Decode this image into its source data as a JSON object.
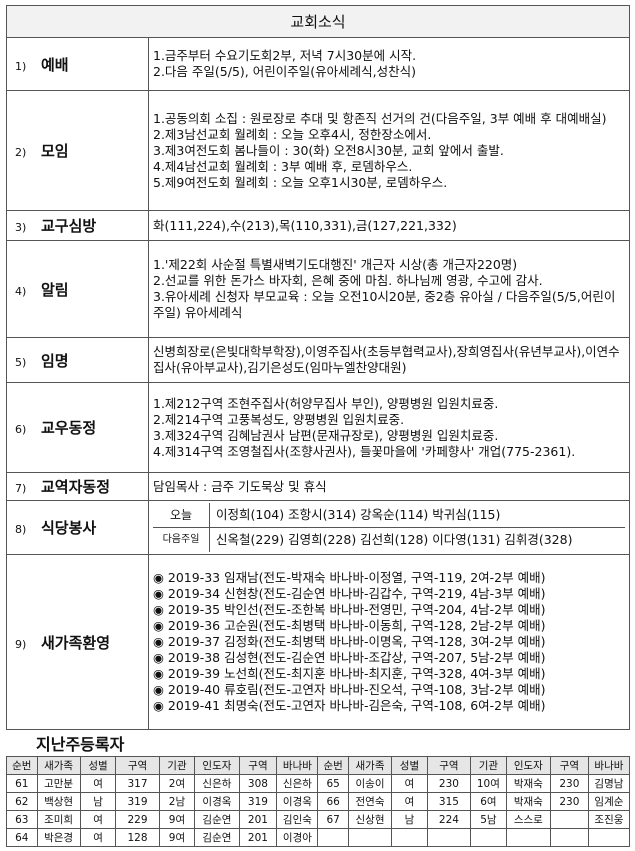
{
  "header": {
    "title": "교회소식"
  },
  "sections": [
    {
      "number": "1)",
      "title": "예배",
      "lines": [
        "1.금주부터 수요기도회2부, 저녁 7시30분에 시작.",
        "2.다음 주일(5/5), 어린이주일(유아세례식,성찬식)"
      ]
    },
    {
      "number": "2)",
      "title": "모임",
      "lines": [
        "1.공동의회 소집 : 원로장로 추대 및 항존직 선거의 건(다음주일, 3부 예배 후 대예배실)",
        "2.제3남선교회 월례회 : 오늘 오후4시, 정한장소에서.",
        "3.제3여전도회 봄나들이 : 30(화) 오전8시30분, 교회 앞에서 출발.",
        "4.제4남선교회 월례회 : 3부 예배 후, 로뎀하우스.",
        "5.제9여전도회 월례회 : 오늘 오후1시30분, 로뎀하우스."
      ]
    },
    {
      "number": "3)",
      "title": "교구심방",
      "lines": [
        "화(111,224),수(213),목(110,331),금(127,221,332)"
      ]
    },
    {
      "number": "4)",
      "title": "알림",
      "lines": [
        "1.'제22회 사순절 특별새벽기도대행진' 개근자 시상(총 개근자220명)",
        "2.선교를 위한 돈가스 바자회, 은혜 중에 마침. 하나님께 영광, 수고에 감사.",
        "3.유아세례 신청자 부모교육 : 오늘 오전10시20분, 중2층 유아실 / 다음주일(5/5,어린이주일) 유아세례식"
      ]
    },
    {
      "number": "5)",
      "title": "임명",
      "lines": [
        "신병희장로(은빛대학부학장),이영주집사(초등부협력교사),장희영집사(유년부교사),이연수집사(유아부교사),김기은성도(임마누엘찬양대원)"
      ]
    },
    {
      "number": "6)",
      "title": "교우동정",
      "lines": [
        "1.제212구역 조현주집사(허양무집사 부인), 양평병원 입원치료중.",
        "2.제214구역 고풍복성도, 양평병원 입원치료중.",
        "3.제324구역 김혜남권사 남편(문재규장로), 양평병원 입원치료중.",
        "4.제314구역 조영철집사(조향사권사), 들꽃마을에 '카페향사' 개업(775-2361)."
      ]
    },
    {
      "number": "7)",
      "title": "교역자동정",
      "lines": [
        "담임목사 : 금주 기도묵상 및 휴식"
      ]
    },
    {
      "number": "8)",
      "title": "식당봉사",
      "rows": [
        {
          "label": "오늘",
          "names": "이정희(104) 조항시(314) 강옥순(114) 박귀심(115)"
        },
        {
          "label": "다음주일",
          "names": "신옥철(229) 김영희(228) 김선희(128) 이다영(131) 김휘경(328)"
        }
      ]
    },
    {
      "number": "9)",
      "title": "새가족환영",
      "lines": [
        "◉ 2019-33 임재남(전도-박재숙 바나바-이정열, 구역-119, 2여-2부 예배)",
        "◉ 2019-34 신현창(전도-김순연 바나바-김갑수, 구역-219, 4남-3부 예배)",
        "◉ 2019-35 박인선(전도-조한복 바나바-전영민, 구역-204, 4남-2부 예배)",
        "◉ 2019-36 고순원(전도-최병택 바나바-이동희, 구역-128, 2남-2부 예배)",
        "◉ 2019-37 김정화(전도-최병택 바나바-이명옥, 구역-128, 3여-2부 예배)",
        "◉ 2019-38 김성현(전도-김순연 바나바-조갑상, 구역-207, 5남-2부 예배)",
        "◉ 2019-39 노선희(전도-최지훈 바나바-최지훈, 구역-328, 4여-3부 예배)",
        "◉ 2019-40 류호림(전도-고연자 바나바-진오석, 구역-108, 3남-2부 예배)",
        "◉ 2019-41 최명숙(전도-고연자 바나바-김은숙, 구역-108, 6여-2부 예배)"
      ]
    }
  ],
  "registrants": {
    "title": "지난주등록자",
    "columns": [
      "순번",
      "새가족",
      "성별",
      "구역",
      "기관",
      "인도자",
      "구역",
      "바나바",
      "순번",
      "새가족",
      "성별",
      "구역",
      "기관",
      "인도자",
      "구역",
      "바나바"
    ],
    "rows": [
      [
        "61",
        "고만분",
        "여",
        "317",
        "2여",
        "신은하",
        "308",
        "신은하",
        "65",
        "이송이",
        "여",
        "230",
        "10여",
        "박재숙",
        "230",
        "김명남"
      ],
      [
        "62",
        "백상현",
        "남",
        "319",
        "2남",
        "이경옥",
        "319",
        "이경옥",
        "66",
        "전연숙",
        "여",
        "315",
        "6여",
        "박재숙",
        "230",
        "임계순"
      ],
      [
        "63",
        "조미희",
        "여",
        "229",
        "9여",
        "김순연",
        "201",
        "김인숙",
        "67",
        "신상현",
        "남",
        "224",
        "5남",
        "스스로",
        null,
        "조진웅"
      ],
      [
        "64",
        "박은경",
        "여",
        "128",
        "9여",
        "김순연",
        "201",
        "이경아",
        null,
        null,
        null,
        null,
        null,
        null,
        null,
        null
      ]
    ]
  }
}
